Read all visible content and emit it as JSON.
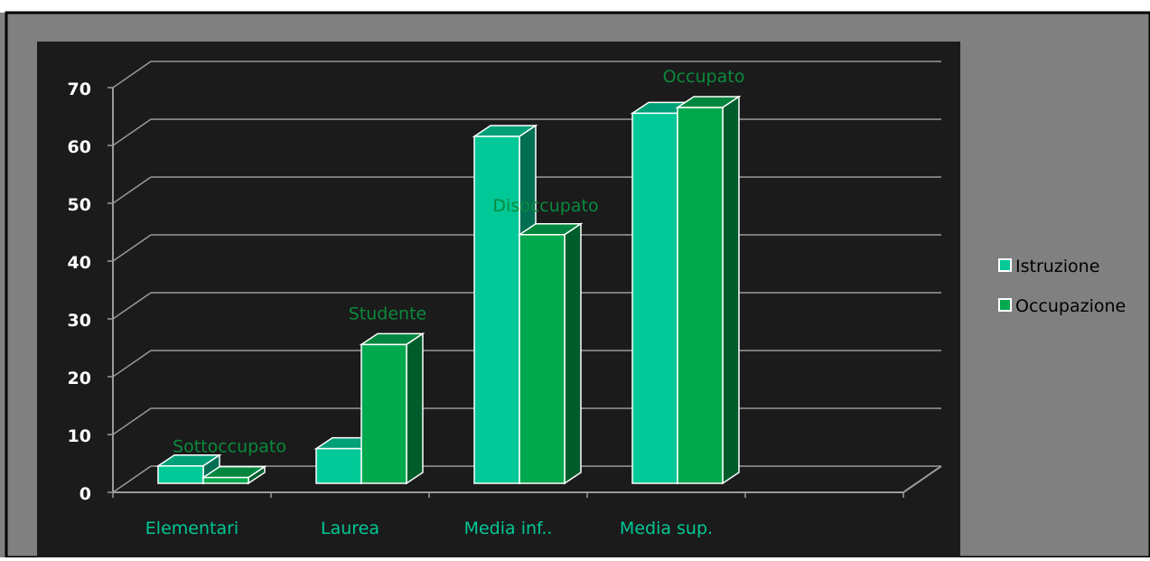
{
  "chart_data": {
    "type": "bar",
    "categories": [
      "Elementari",
      "Laurea",
      "Media inf..",
      "Media sup."
    ],
    "series": [
      {
        "name": "Istruzione",
        "values": [
          3,
          6,
          60,
          64
        ]
      },
      {
        "name": "Occupazione",
        "values": [
          1,
          24,
          43,
          65
        ]
      }
    ],
    "annotations": [
      "Sottoccupato",
      "Studente",
      "Disoccupato",
      "Occupato"
    ],
    "yticks": [
      "0",
      "10",
      "20",
      "30",
      "40",
      "50",
      "60",
      "70"
    ],
    "ylim": [
      0,
      70
    ],
    "grid": true,
    "legend_position": "right",
    "three_d": true
  },
  "colors": {
    "istruzione": "#00C896",
    "occupazione": "#00A84E",
    "plot_bg": "#1b1b1b",
    "outer_bg": "#808080",
    "axis_text": "#ffffff",
    "category_text": "#00C896",
    "annotation_text": "#0A8A3C",
    "legend_text": "#000000"
  }
}
